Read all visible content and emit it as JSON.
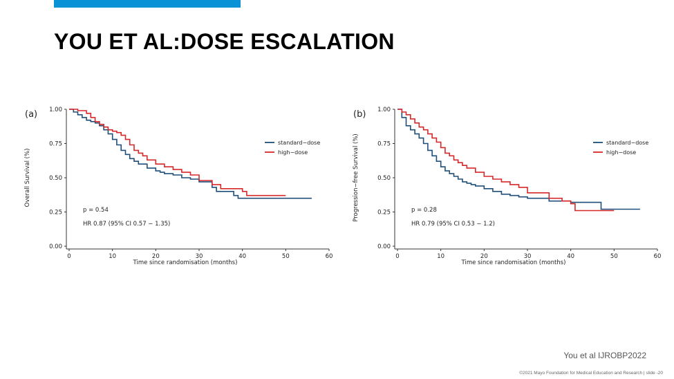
{
  "slide": {
    "title": "YOU ET AL:DOSE ESCALATION",
    "citation": "You et al IJROBP2022",
    "footer": "©2021 Mayo Foundation for Medical Education and Research | slide -20",
    "accent_color": "#0a92d6"
  },
  "chart_data": [
    {
      "type": "line",
      "panel_label": "(a)",
      "xlabel": "Time since randomisation (months)",
      "ylabel": "Overall Survival (%)",
      "xlim": [
        0,
        60
      ],
      "ylim": [
        0,
        1
      ],
      "x_ticks": [
        "0",
        "10",
        "20",
        "30",
        "40",
        "50",
        "60"
      ],
      "y_ticks": [
        "0.00",
        "0.25",
        "0.50",
        "0.75",
        "1.00"
      ],
      "legend_position": "top-right",
      "annotations": [
        "p = 0.54",
        "HR 0.87 (95% CI 0.57 − 1.35)"
      ],
      "series": [
        {
          "name": "standard−dose",
          "color": "#1f4e79",
          "x": [
            0,
            1,
            2,
            3,
            4,
            5,
            6,
            7,
            8,
            9,
            10,
            11,
            12,
            13,
            14,
            15,
            16,
            18,
            20,
            21,
            22,
            24,
            26,
            28,
            30,
            33,
            34,
            38,
            39,
            50,
            56
          ],
          "y": [
            1.0,
            0.98,
            0.96,
            0.94,
            0.92,
            0.91,
            0.9,
            0.88,
            0.85,
            0.82,
            0.78,
            0.74,
            0.7,
            0.67,
            0.64,
            0.62,
            0.6,
            0.57,
            0.55,
            0.54,
            0.53,
            0.52,
            0.5,
            0.49,
            0.47,
            0.43,
            0.4,
            0.37,
            0.35,
            0.35,
            0.35
          ]
        },
        {
          "name": "high−dose",
          "color": "#d62728",
          "x": [
            0,
            2,
            4,
            5,
            6,
            7,
            8,
            9,
            10,
            11,
            12,
            13,
            14,
            15,
            16,
            17,
            18,
            20,
            22,
            24,
            26,
            28,
            30,
            33,
            35,
            40,
            41,
            48,
            50
          ],
          "y": [
            1.0,
            0.99,
            0.97,
            0.94,
            0.91,
            0.89,
            0.87,
            0.85,
            0.84,
            0.83,
            0.81,
            0.78,
            0.74,
            0.7,
            0.68,
            0.66,
            0.63,
            0.6,
            0.58,
            0.56,
            0.54,
            0.52,
            0.48,
            0.45,
            0.42,
            0.4,
            0.37,
            0.37,
            0.37
          ]
        }
      ]
    },
    {
      "type": "line",
      "panel_label": "(b)",
      "xlabel": "Time since randomisation (months)",
      "ylabel": "Progression−free Survival (%)",
      "xlim": [
        0,
        60
      ],
      "ylim": [
        0,
        1
      ],
      "x_ticks": [
        "0",
        "10",
        "20",
        "30",
        "40",
        "50",
        "60"
      ],
      "y_ticks": [
        "0.00",
        "0.25",
        "0.50",
        "0.75",
        "1.00"
      ],
      "legend_position": "top-right",
      "annotations": [
        "p = 0.28",
        "HR 0.79 (95% CI 0.53 − 1.2)"
      ],
      "series": [
        {
          "name": "standard−dose",
          "color": "#1f4e79",
          "x": [
            0,
            1,
            2,
            3,
            4,
            5,
            6,
            7,
            8,
            9,
            10,
            11,
            12,
            13,
            14,
            15,
            16,
            17,
            18,
            20,
            22,
            24,
            26,
            28,
            30,
            35,
            40,
            47,
            56
          ],
          "y": [
            1.0,
            0.94,
            0.88,
            0.85,
            0.82,
            0.79,
            0.75,
            0.7,
            0.66,
            0.62,
            0.58,
            0.55,
            0.53,
            0.51,
            0.49,
            0.47,
            0.46,
            0.45,
            0.44,
            0.42,
            0.4,
            0.38,
            0.37,
            0.36,
            0.35,
            0.33,
            0.32,
            0.27,
            0.27
          ]
        },
        {
          "name": "high−dose",
          "color": "#d62728",
          "x": [
            0,
            1,
            2,
            3,
            4,
            5,
            6,
            7,
            8,
            9,
            10,
            11,
            12,
            13,
            14,
            15,
            16,
            18,
            20,
            22,
            24,
            26,
            28,
            30,
            35,
            38,
            40,
            41,
            50
          ],
          "y": [
            1.0,
            0.98,
            0.96,
            0.93,
            0.9,
            0.87,
            0.85,
            0.82,
            0.79,
            0.76,
            0.72,
            0.68,
            0.66,
            0.63,
            0.61,
            0.59,
            0.57,
            0.54,
            0.51,
            0.49,
            0.47,
            0.45,
            0.43,
            0.39,
            0.35,
            0.33,
            0.31,
            0.26,
            0.26
          ]
        }
      ]
    }
  ]
}
